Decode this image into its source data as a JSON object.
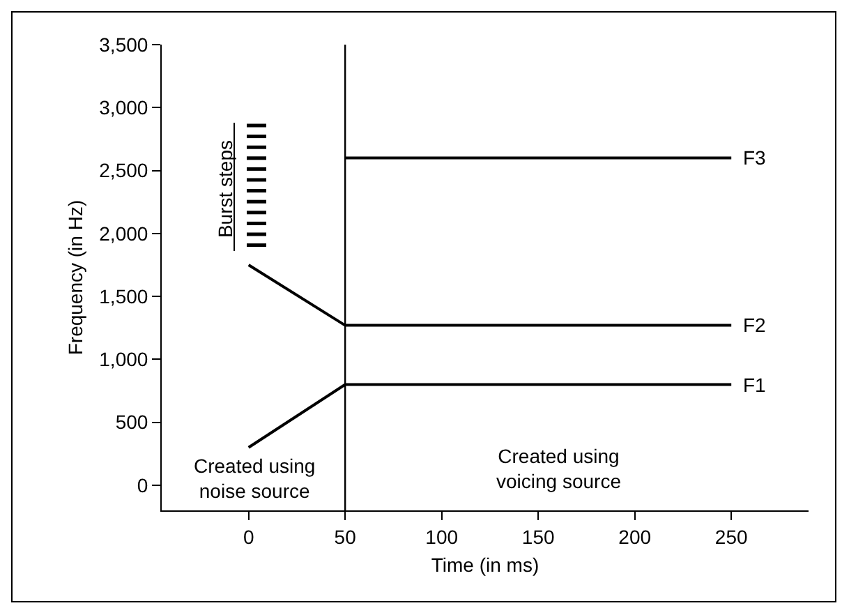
{
  "chart_data": {
    "type": "line",
    "xlabel": "Time (in ms)",
    "ylabel": "Frequency (in Hz)",
    "xlim": [
      -45,
      290
    ],
    "xticks": [
      0,
      50,
      100,
      150,
      200,
      250
    ],
    "ylim": [
      -200,
      3500
    ],
    "yticks": [
      {
        "value": 0,
        "label": "0"
      },
      {
        "value": 500,
        "label": "500"
      },
      {
        "value": 1000,
        "label": "1,000"
      },
      {
        "value": 1500,
        "label": "1,500"
      },
      {
        "value": 2000,
        "label": "2,000"
      },
      {
        "value": 2500,
        "label": "2,500"
      },
      {
        "value": 3000,
        "label": "3,000"
      },
      {
        "value": 3500,
        "label": "3,500"
      }
    ],
    "series": [
      {
        "name": "F1",
        "color": "#000000",
        "x": [
          0,
          50,
          250
        ],
        "values": [
          300,
          800,
          800
        ]
      },
      {
        "name": "F2",
        "color": "#000000",
        "x": [
          0,
          50,
          250
        ],
        "values": [
          1750,
          1270,
          1270
        ]
      },
      {
        "name": "F3",
        "color": "#000000",
        "x": [
          50,
          250
        ],
        "values": [
          2600,
          2600
        ]
      }
    ],
    "ref_lines": [
      {
        "axis": "x",
        "value": 50,
        "color": "#000000"
      }
    ],
    "annotations": [
      "Burst steps",
      "Created using\nnoise source",
      "Created using\nvoicing source"
    ],
    "grid": false,
    "legend": false,
    "marker": "none",
    "line_style": "solid"
  }
}
